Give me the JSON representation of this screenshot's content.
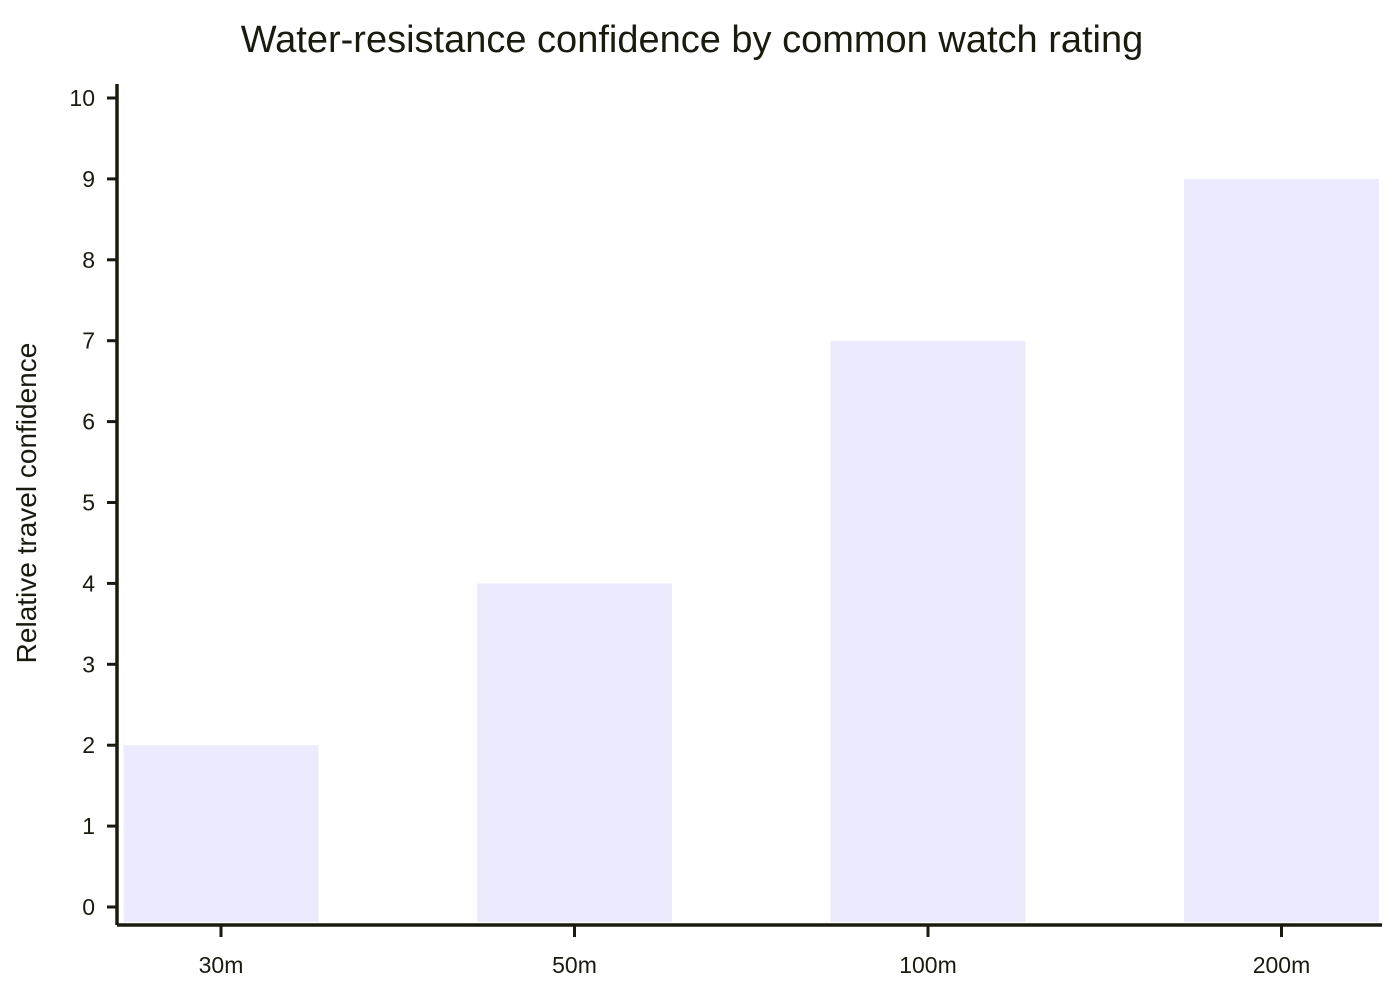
{
  "chart_data": {
    "type": "bar",
    "title": "Water-resistance confidence by common watch rating",
    "xlabel": "",
    "ylabel": "Relative travel confidence",
    "categories": [
      "30m",
      "50m",
      "100m",
      "200m"
    ],
    "values": [
      2,
      4,
      7,
      9
    ],
    "ylim": [
      0,
      10
    ],
    "yticks": [
      0,
      1,
      2,
      3,
      4,
      5,
      6,
      7,
      8,
      9,
      10
    ],
    "grid": false,
    "legend": "none",
    "colors": {
      "bar": "#ecebfd",
      "axis": "#1a1a0f",
      "text": "#1a1a0f",
      "background": "#ffffff"
    }
  }
}
